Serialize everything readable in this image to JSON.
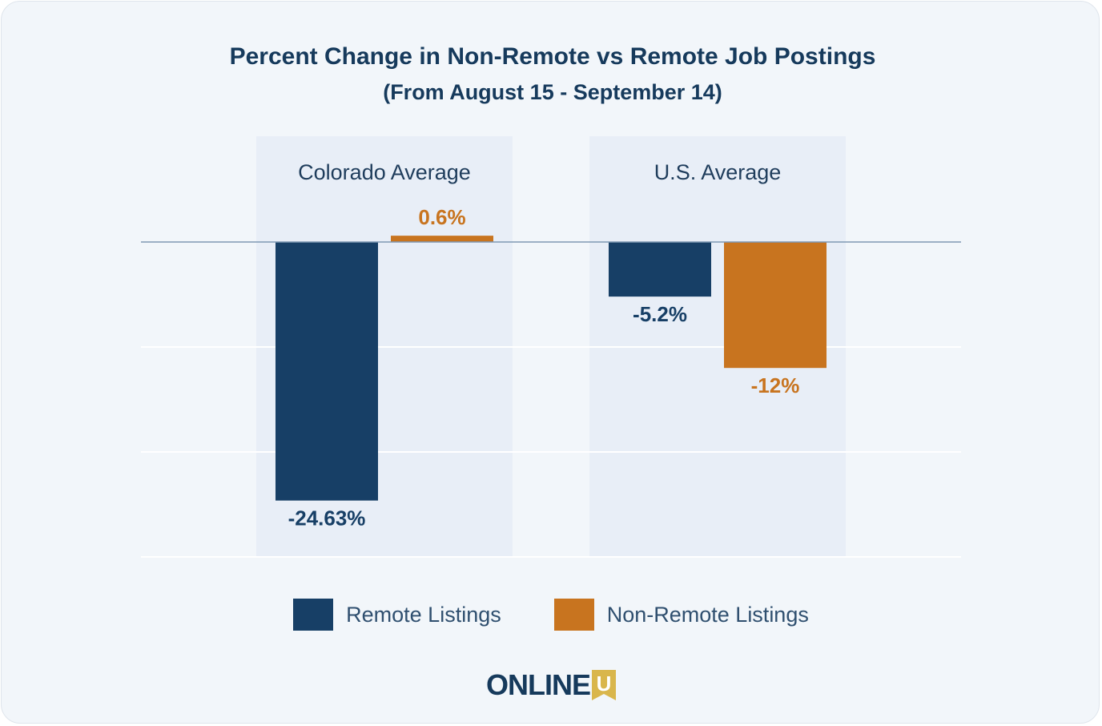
{
  "chart_data": {
    "type": "bar",
    "title": "Percent Change in Non-Remote vs Remote Job Postings",
    "subtitle": "(From August 15 - September 14)",
    "categories": [
      "Colorado Average",
      "U.S. Average"
    ],
    "series": [
      {
        "name": "Remote Listings",
        "values": [
          -24.63,
          -5.2
        ],
        "labels": [
          "-24.63%",
          "-5.2%"
        ],
        "color": "#173f66"
      },
      {
        "name": "Non-Remote Listings",
        "values": [
          0.6,
          -12
        ],
        "labels": [
          "0.6%",
          "-12%"
        ],
        "color": "#c8741f"
      }
    ],
    "ylim": [
      -30,
      0
    ],
    "grid": true,
    "legend": "bottom"
  },
  "logo": {
    "text": "ONLINE",
    "mark": "U",
    "mark_color": "#d9b64c"
  }
}
